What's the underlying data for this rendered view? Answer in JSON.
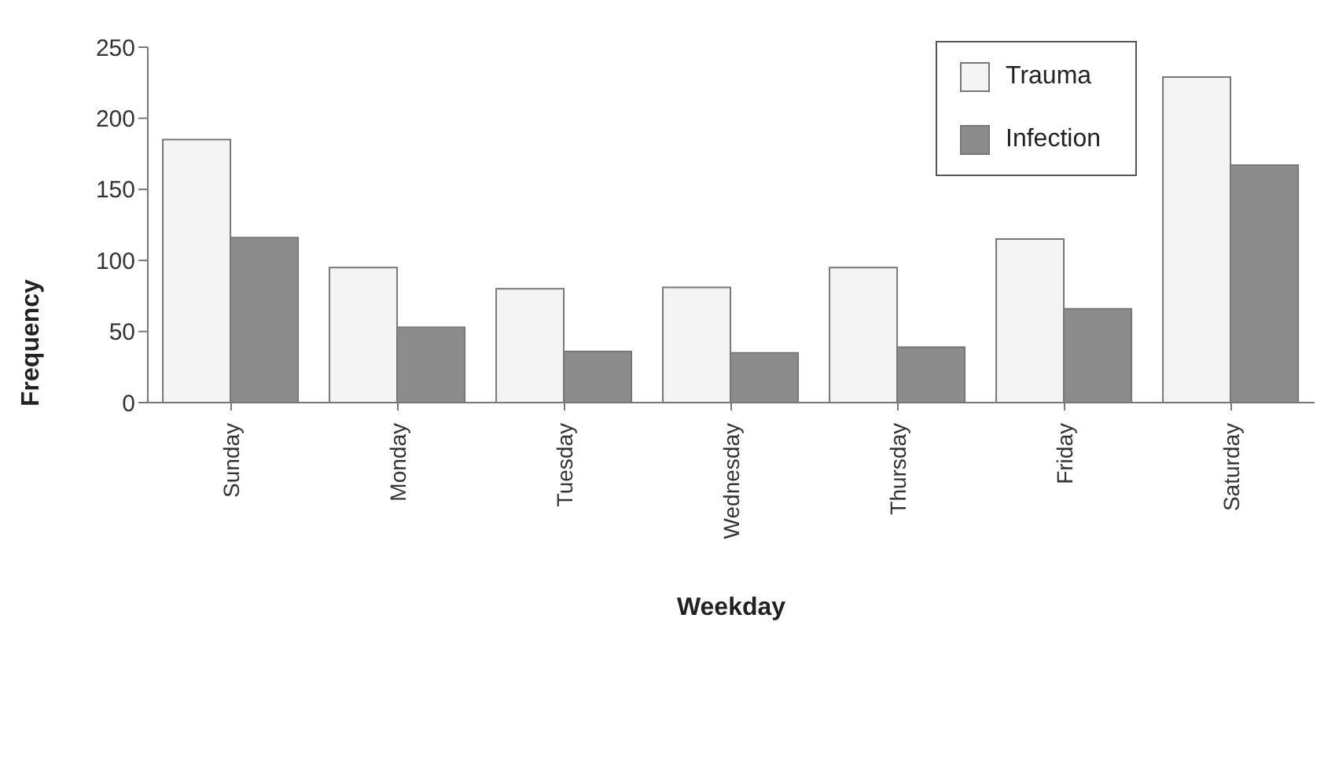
{
  "chart_data": {
    "type": "bar",
    "xlabel": "Weekday",
    "ylabel": "Frequency",
    "categories": [
      "Sunday",
      "Monday",
      "Tuesday",
      "Wednesday",
      "Thursday",
      "Friday",
      "Saturday"
    ],
    "series": [
      {
        "name": "Trauma",
        "color": "#f4f4f4",
        "values": [
          185,
          95,
          80,
          81,
          95,
          115,
          229
        ]
      },
      {
        "name": "Infection",
        "color": "#8c8c8c",
        "values": [
          116,
          53,
          36,
          35,
          39,
          66,
          167
        ]
      }
    ],
    "ylim": [
      0,
      250
    ],
    "yticks": [
      0,
      50,
      100,
      150,
      200,
      250
    ],
    "legend": "top right"
  }
}
